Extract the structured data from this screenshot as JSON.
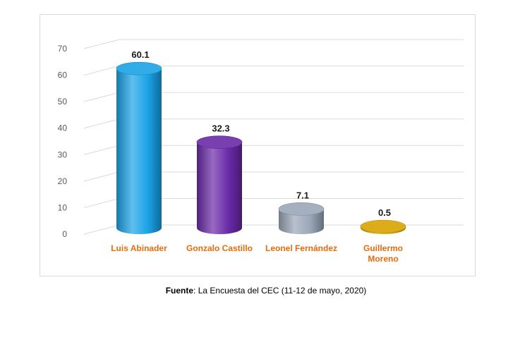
{
  "chart_data": {
    "type": "bar",
    "categories": [
      "Luis Abinader",
      "Gonzalo Castillo",
      "Leonel Fernández",
      "Guillermo Moreno"
    ],
    "category_lines": [
      [
        "Luis Abinader"
      ],
      [
        "Gonzalo Castillo"
      ],
      [
        "Leonel Fernández"
      ],
      [
        "Guillermo",
        "Moreno"
      ]
    ],
    "values": [
      60.1,
      32.3,
      7.1,
      0.5
    ],
    "value_labels": [
      "60.1",
      "32.3",
      "7.1",
      "0.5"
    ],
    "ylim": [
      0,
      70
    ],
    "yticks": [
      0,
      10,
      20,
      30,
      40,
      50,
      60,
      70
    ],
    "grid": true,
    "colors": [
      "#1aa3e6",
      "#6a2aa8",
      "#9aa7b8",
      "#d9a300"
    ],
    "category_label_color": "#e46c0a"
  },
  "source": {
    "label": "Fuente",
    "text": ": La Encuesta del CEC (11-12 de mayo, 2020)"
  }
}
